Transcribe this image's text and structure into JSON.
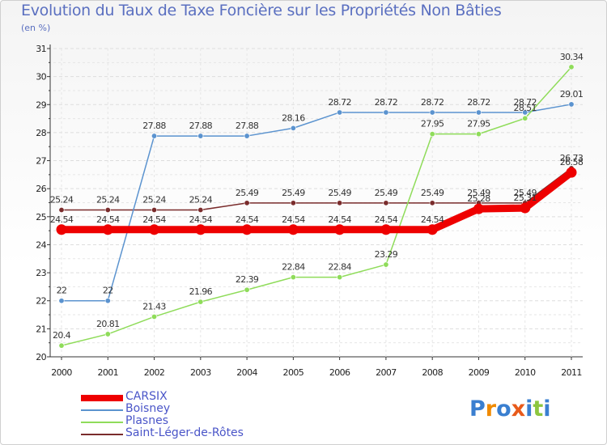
{
  "chart_data": {
    "type": "line",
    "title": "Evolution du Taux de Taxe Foncière sur les Propriétés Non Bâties",
    "unit_label": "(en %)",
    "categories": [
      "2000",
      "2001",
      "2002",
      "2003",
      "2004",
      "2005",
      "2006",
      "2007",
      "2008",
      "2009",
      "2010",
      "2011"
    ],
    "ylim": [
      20,
      31
    ],
    "yticks": [
      20,
      21,
      22,
      23,
      24,
      25,
      26,
      27,
      28,
      29,
      30,
      31
    ],
    "series": [
      {
        "name": "Saint-Léger-de-Rôtes",
        "color": "#7a2c2c",
        "values": [
          25.24,
          25.24,
          25.24,
          25.24,
          25.49,
          25.49,
          25.49,
          25.49,
          25.49,
          25.49,
          25.49,
          26.73
        ],
        "labels": [
          "25.24",
          "25.24",
          "25.24",
          "25.24",
          "25.49",
          "25.49",
          "25.49",
          "25.49",
          "25.49",
          "25.49",
          "25.49",
          "26.73"
        ]
      },
      {
        "name": "Boisney",
        "color": "#5b93cf",
        "values": [
          22,
          22,
          27.88,
          27.88,
          27.88,
          28.16,
          28.72,
          28.72,
          28.72,
          28.72,
          28.72,
          29.01
        ],
        "labels": [
          "22",
          "22",
          "27.88",
          "27.88",
          "27.88",
          "28.16",
          "28.72",
          "28.72",
          "28.72",
          "28.72",
          "28.72",
          "29.01"
        ]
      },
      {
        "name": "Plasnes",
        "color": "#8fdc5a",
        "values": [
          20.4,
          20.81,
          21.43,
          21.96,
          22.39,
          22.84,
          22.84,
          23.29,
          27.95,
          27.95,
          28.51,
          30.34
        ],
        "labels": [
          "20.4",
          "20.81",
          "21.43",
          "21.96",
          "22.39",
          "22.84",
          "22.84",
          "23.29",
          "27.95",
          "27.95",
          "28.51",
          "30.34"
        ]
      },
      {
        "name": "CARSIX",
        "color": "#ee0000",
        "values": [
          24.54,
          24.54,
          24.54,
          24.54,
          24.54,
          24.54,
          24.54,
          24.54,
          24.54,
          25.28,
          25.31,
          26.58
        ],
        "labels": [
          "24.54",
          "24.54",
          "24.54",
          "24.54",
          "24.54",
          "24.54",
          "24.54",
          "24.54",
          "24.54",
          "25.28",
          "25.31",
          "26.58"
        ]
      }
    ],
    "legend_order": [
      "CARSIX",
      "Boisney",
      "Plasnes",
      "Saint-Léger-de-Rôtes"
    ],
    "legend_position": "bottom-left"
  },
  "logo": {
    "letters": [
      "P",
      "r",
      "o",
      "x",
      "i",
      "t",
      "i"
    ],
    "colors": [
      "#3a7fd0",
      "#f08a00",
      "#3a7fd0",
      "#e85a1a",
      "#3a7fd0",
      "#8cc63f",
      "#3a7fd0"
    ]
  }
}
